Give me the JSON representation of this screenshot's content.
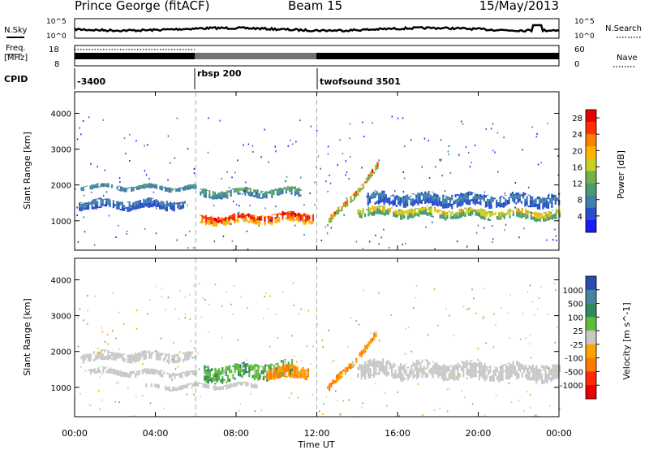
{
  "header": {
    "station": "Prince George (fitACF)",
    "beam": "Beam 15",
    "date": "15/May/2013"
  },
  "strips": {
    "nsky_label": "N.Sky",
    "nsearch_label": "N.Search",
    "log_max": "10^5",
    "log_min": "10^0",
    "freq_label": "Freq.",
    "freq_unit": "[MHz]",
    "freq_max": "18",
    "freq_min": "8",
    "nave_label": "Nave",
    "nave_max": "60",
    "nave_min": "0",
    "cpid_label": "CPID",
    "cpid": [
      "-3400",
      "rbsp 200",
      "twofsound 3501"
    ],
    "cpid_change_hours": [
      6.0,
      12.0
    ]
  },
  "chart_data": [
    {
      "type": "heatmap",
      "parameter": "power",
      "xlabel": "Time UT",
      "ylabel": "Slant Range [km]",
      "x_ticks": [
        "00:00",
        "04:00",
        "08:00",
        "12:00",
        "16:00",
        "20:00",
        "00:00"
      ],
      "xlim_hours": [
        0,
        24
      ],
      "ylim": [
        180,
        4600
      ],
      "y_ticks": [
        1000,
        2000,
        3000,
        4000
      ],
      "colorbar_label": "Power [dB]",
      "colorbar_ticks": [
        "4",
        "8",
        "12",
        "16",
        "20",
        "24",
        "28"
      ],
      "colorbar_range": [
        0,
        30
      ],
      "colors": [
        "#1a1aff",
        "#2750c8",
        "#3f7fa8",
        "#4a9a70",
        "#78b048",
        "#c8d21e",
        "#ffb400",
        "#ff7f00",
        "#ff3000",
        "#e60000"
      ],
      "features": [
        {
          "name": "morning band",
          "t_start": 0.3,
          "t_end": 6.0,
          "range_center": [
            1950,
            1900
          ],
          "range_width": 150,
          "power_db": [
            8,
            12
          ]
        },
        {
          "name": "low echoes",
          "t_start": 0.2,
          "t_end": 5.5,
          "range_center": [
            1450,
            1450
          ],
          "range_width": 300,
          "power_db": [
            4,
            9
          ]
        },
        {
          "name": "midday strong echoes",
          "t_start": 6.2,
          "t_end": 11.8,
          "range_center": [
            1000,
            1100
          ],
          "range_width": 330,
          "power_db": [
            20,
            30
          ]
        },
        {
          "name": "upper echoes",
          "t_start": 6.2,
          "t_end": 11.2,
          "range_center": [
            1750,
            1800
          ],
          "range_width": 260,
          "power_db": [
            6,
            14
          ]
        },
        {
          "name": "rising streak",
          "t_start": 12.5,
          "t_end": 15.0,
          "range_center": [
            900,
            2500
          ],
          "range_width": 230,
          "power_db": [
            14,
            30
          ]
        },
        {
          "name": "afternoon band",
          "t_start": 14.0,
          "t_end": 24.0,
          "range_center": [
            1250,
            1150
          ],
          "range_width": 300,
          "power_db": [
            10,
            22
          ]
        },
        {
          "name": "diffuse upper",
          "t_start": 14.5,
          "t_end": 24.0,
          "range_center": [
            1600,
            1550
          ],
          "range_width": 400,
          "power_db": [
            3,
            9
          ]
        }
      ]
    },
    {
      "type": "heatmap",
      "parameter": "velocity",
      "xlabel": "Time UT",
      "ylabel": "Slant Range [km]",
      "x_ticks": [
        "00:00",
        "04:00",
        "08:00",
        "12:00",
        "16:00",
        "20:00",
        "00:00"
      ],
      "xlim_hours": [
        0,
        24
      ],
      "ylim": [
        180,
        4600
      ],
      "y_ticks": [
        1000,
        2000,
        3000,
        4000
      ],
      "colorbar_label": "Velocity [m s^-1]",
      "colorbar_ticks": [
        "1000",
        "500",
        "100",
        "25",
        "-25",
        "-100",
        "-500",
        "-1000"
      ],
      "colorbar_range": [
        -1000,
        1000
      ],
      "colors": [
        "#2a4bb0",
        "#4684a0",
        "#2e8a5c",
        "#5fbb3c",
        "#c8c8c8",
        "#ffa200",
        "#ff7a00",
        "#ff2a00",
        "#e60000"
      ],
      "features": [
        {
          "name": "ground scatter band",
          "t_start": 0.3,
          "t_end": 6.0,
          "range_center": [
            1850,
            1850
          ],
          "range_width": 300,
          "velocity": [
            -25,
            25
          ]
        },
        {
          "name": "low ground scatter",
          "t_start": 0.5,
          "t_end": 6.0,
          "range_center": [
            1450,
            1350
          ],
          "range_width": 200,
          "velocity": [
            -25,
            25
          ]
        },
        {
          "name": "midday positive flow",
          "t_start": 6.4,
          "t_end": 10.8,
          "range_center": [
            1350,
            1500
          ],
          "range_width": 500,
          "velocity": [
            100,
            500
          ]
        },
        {
          "name": "midday negative patch",
          "t_start": 9.5,
          "t_end": 11.6,
          "range_center": [
            1400,
            1400
          ],
          "range_width": 400,
          "velocity": [
            -500,
            -100
          ]
        },
        {
          "name": "rising negative streak",
          "t_start": 12.5,
          "t_end": 15.0,
          "range_center": [
            900,
            2500
          ],
          "range_width": 230,
          "velocity": [
            -500,
            -100
          ]
        },
        {
          "name": "afternoon ground scatter",
          "t_start": 14.0,
          "t_end": 24.0,
          "range_center": [
            1500,
            1400
          ],
          "range_width": 550,
          "velocity": [
            -25,
            25
          ]
        },
        {
          "name": "low positive echoes",
          "t_start": 3.5,
          "t_end": 9.0,
          "range_center": [
            1000,
            1050
          ],
          "range_width": 150,
          "velocity": [
            25,
            100
          ]
        }
      ]
    }
  ]
}
